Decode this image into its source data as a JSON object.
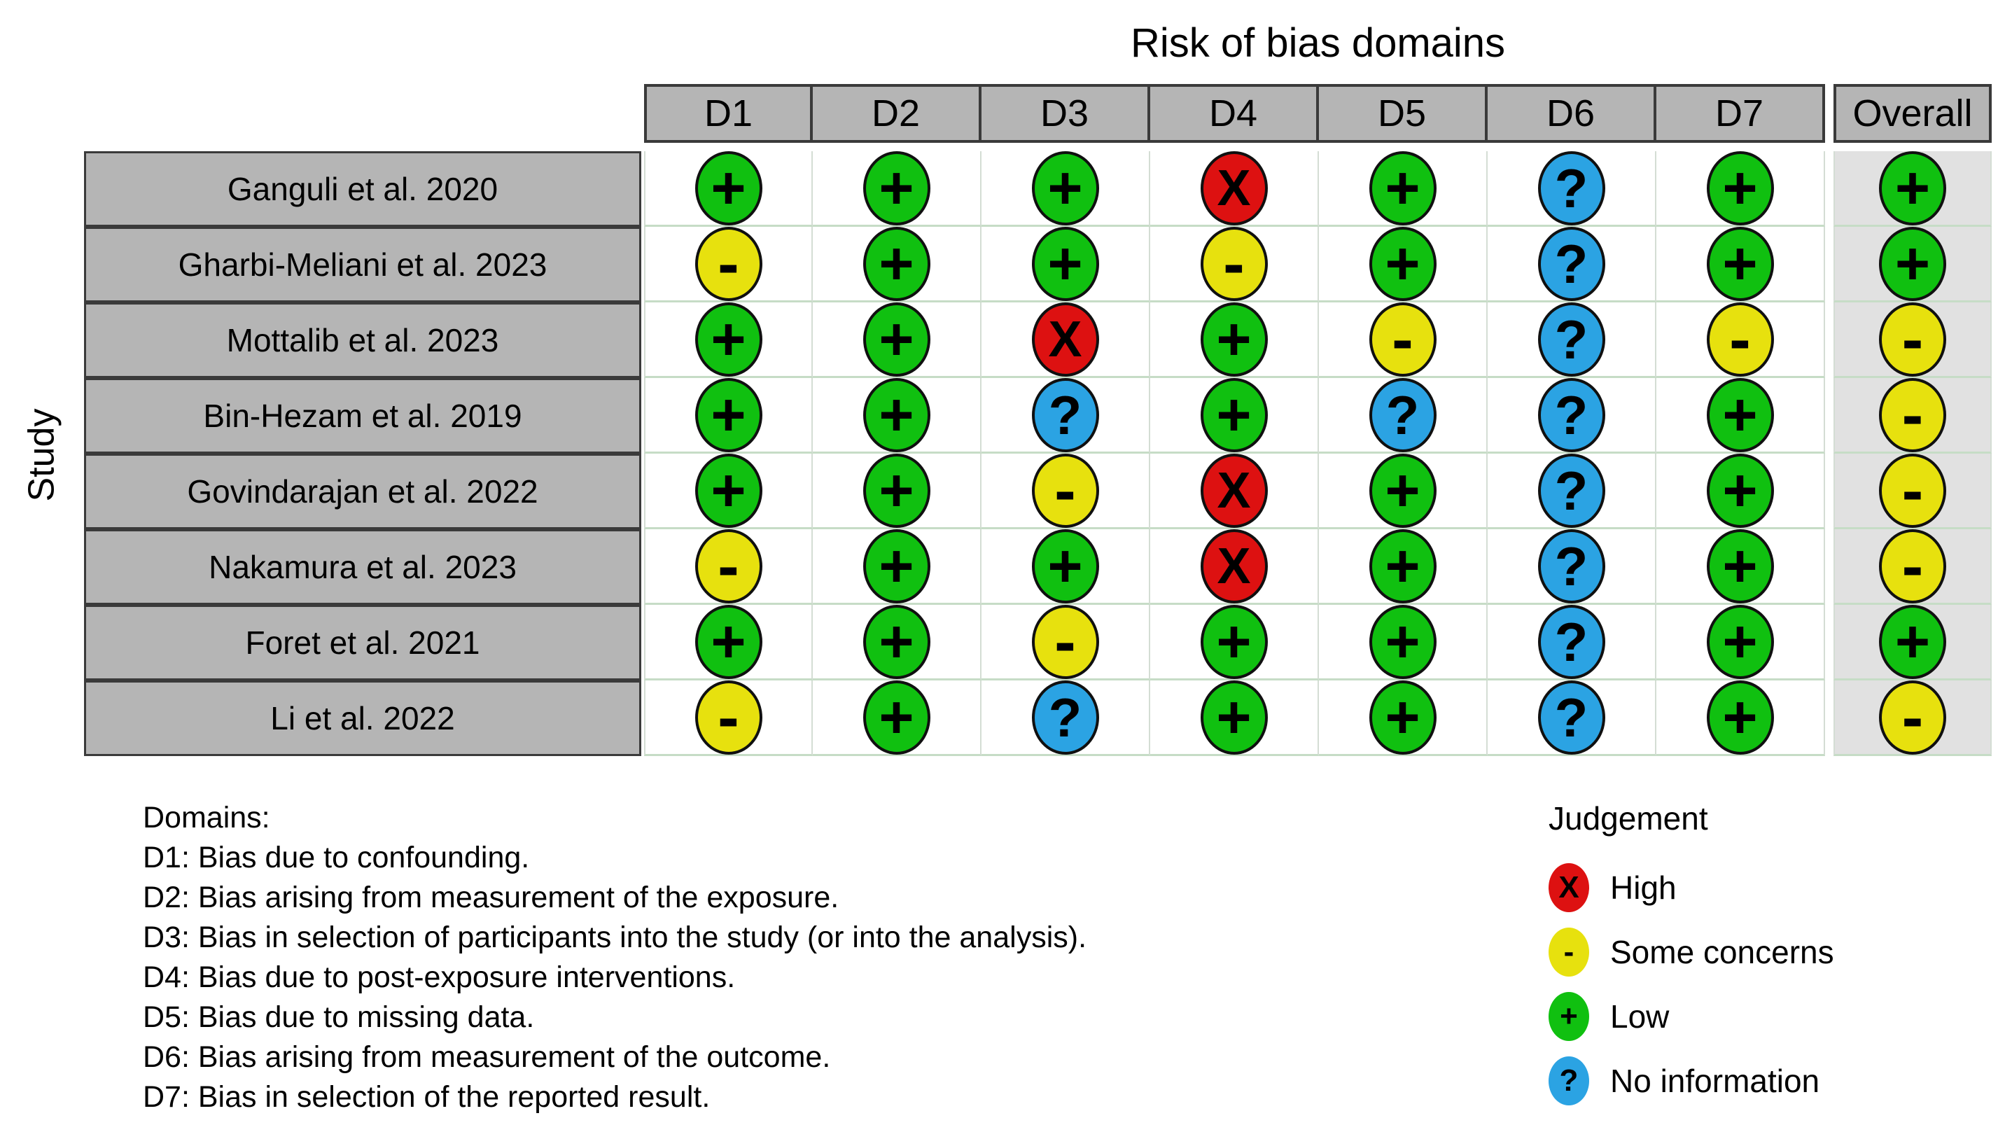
{
  "chart_data": {
    "type": "table",
    "title": "Risk of bias domains",
    "row_axis_label": "Study",
    "columns": [
      "D1",
      "D2",
      "D3",
      "D4",
      "D5",
      "D6",
      "D7",
      "Overall"
    ],
    "rows": [
      {
        "study": "Ganguli et al. 2020",
        "judgements": [
          "low",
          "low",
          "low",
          "high",
          "low",
          "noinfo",
          "low",
          "low"
        ]
      },
      {
        "study": "Gharbi-Meliani et al. 2023",
        "judgements": [
          "some",
          "low",
          "low",
          "some",
          "low",
          "noinfo",
          "low",
          "low"
        ]
      },
      {
        "study": "Mottalib et al. 2023",
        "judgements": [
          "low",
          "low",
          "high",
          "low",
          "some",
          "noinfo",
          "some",
          "some"
        ]
      },
      {
        "study": "Bin-Hezam et al. 2019",
        "judgements": [
          "low",
          "low",
          "noinfo",
          "low",
          "noinfo",
          "noinfo",
          "low",
          "some"
        ]
      },
      {
        "study": "Govindarajan et al. 2022",
        "judgements": [
          "low",
          "low",
          "some",
          "high",
          "low",
          "noinfo",
          "low",
          "some"
        ]
      },
      {
        "study": "Nakamura et al. 2023",
        "judgements": [
          "some",
          "low",
          "low",
          "high",
          "low",
          "noinfo",
          "low",
          "some"
        ]
      },
      {
        "study": "Foret et al. 2021",
        "judgements": [
          "low",
          "low",
          "some",
          "low",
          "low",
          "noinfo",
          "low",
          "low"
        ]
      },
      {
        "study": "Li et al. 2022",
        "judgements": [
          "some",
          "low",
          "noinfo",
          "low",
          "low",
          "noinfo",
          "low",
          "some"
        ]
      }
    ],
    "judgement_symbols": {
      "high": "X",
      "some": "-",
      "low": "+",
      "noinfo": "?"
    },
    "judgement_colors": {
      "high": "#dd1111",
      "some": "#e7e10e",
      "low": "#10c010",
      "noinfo": "#2ba3e3"
    },
    "notes_heading": "Domains:",
    "notes": [
      "D1: Bias due to confounding.",
      "D2: Bias arising from measurement of the exposure.",
      "D3: Bias in selection of participants into the study (or into the analysis).",
      "D4: Bias due to post-exposure interventions.",
      "D5: Bias due to missing data.",
      "D6: Bias arising from measurement of the outcome.",
      "D7: Bias in selection of the reported result."
    ],
    "legend_heading": "Judgement",
    "legend": [
      {
        "key": "high",
        "label": "High"
      },
      {
        "key": "some",
        "label": "Some concerns"
      },
      {
        "key": "low",
        "label": "Low"
      },
      {
        "key": "noinfo",
        "label": "No information"
      }
    ]
  }
}
